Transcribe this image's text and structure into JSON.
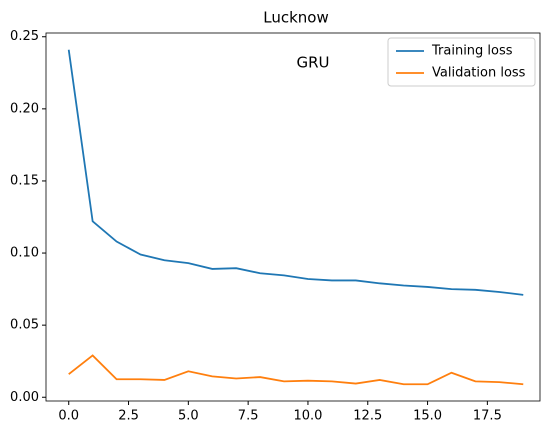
{
  "chart_data": {
    "type": "line",
    "title": "Lucknow",
    "annotation": "GRU",
    "annotation_color": "#ff0000",
    "x": [
      0,
      1,
      2,
      3,
      4,
      5,
      6,
      7,
      8,
      9,
      10,
      11,
      12,
      13,
      14,
      15,
      16,
      17,
      18,
      19
    ],
    "series": [
      {
        "name": "Training loss",
        "color": "#1f77b4",
        "values": [
          0.241,
          0.122,
          0.108,
          0.099,
          0.095,
          0.093,
          0.089,
          0.0895,
          0.086,
          0.0845,
          0.082,
          0.081,
          0.081,
          0.079,
          0.0775,
          0.0765,
          0.075,
          0.0745,
          0.073,
          0.071
        ]
      },
      {
        "name": "Validation loss",
        "color": "#ff7f0e",
        "values": [
          0.016,
          0.029,
          0.0125,
          0.0125,
          0.012,
          0.018,
          0.0145,
          0.013,
          0.014,
          0.011,
          0.0115,
          0.011,
          0.0095,
          0.012,
          0.009,
          0.009,
          0.017,
          0.011,
          0.0105,
          0.009
        ]
      }
    ],
    "xlim": [
      -0.95,
      19.7
    ],
    "xticks": [
      {
        "value": 0,
        "label": "0.0"
      },
      2.5,
      {
        "value": 5,
        "label": "5.0"
      },
      7.5,
      {
        "value": 10,
        "label": "10.0"
      },
      12.5,
      {
        "value": 15,
        "label": "15.0"
      },
      17.5
    ],
    "ylim": [
      -0.0026,
      0.2526
    ],
    "yticks": [
      {
        "value": 0,
        "label": "0.00"
      },
      0.05,
      {
        "value": 0.1,
        "label": "0.10"
      },
      0.15,
      {
        "value": 0.2,
        "label": "0.20"
      },
      0.25
    ],
    "legend": "upper right",
    "grid": false
  }
}
